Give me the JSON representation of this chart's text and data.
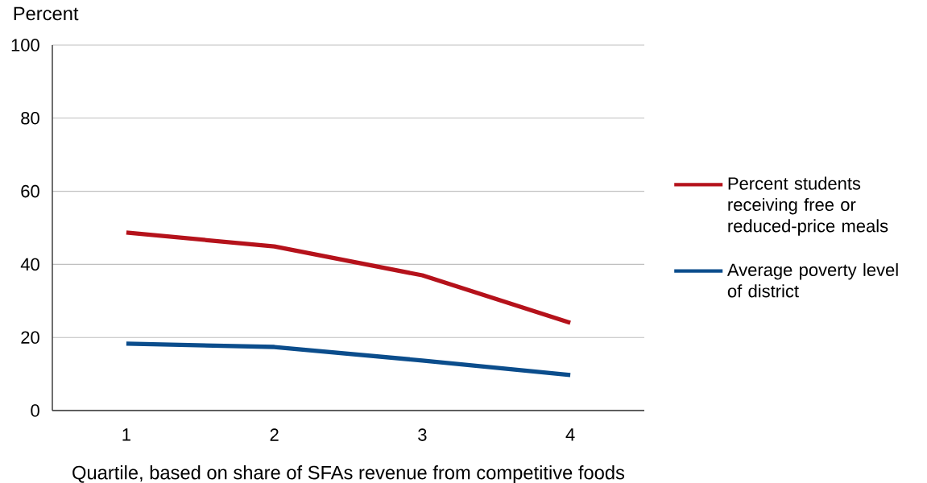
{
  "chart_data": {
    "type": "line",
    "xlabel": "Quartile, based on share of SFAs revenue from competitive foods",
    "ylabel": "Percent",
    "categories": [
      "1",
      "2",
      "3",
      "4"
    ],
    "series": [
      {
        "name": "Percent students receiving free or reduced-price meals",
        "color": "#b5121b",
        "values": [
          48.7,
          44.9,
          37.0,
          24.0
        ]
      },
      {
        "name": "Average poverty level of district",
        "color": "#0b4d8c",
        "values": [
          18.3,
          17.4,
          13.7,
          9.7
        ]
      }
    ],
    "ylim": [
      0,
      100
    ],
    "yticks": [
      0,
      20,
      40,
      60,
      80,
      100
    ],
    "grid": "y",
    "legend": "right",
    "marker": "none",
    "line_style": "solid"
  }
}
